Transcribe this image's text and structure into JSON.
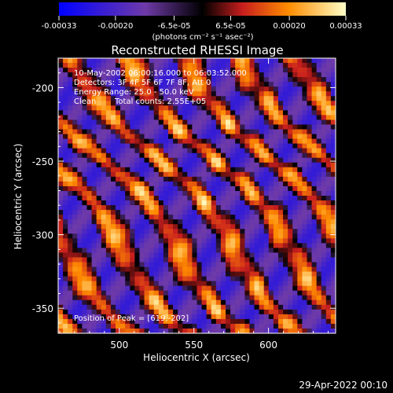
{
  "colorbar": {
    "tick_labels": [
      "-0.00033",
      "-0.00020",
      "-6.5e-05",
      "6.5e-05",
      "0.00020",
      "0.00033"
    ],
    "tick_values": [
      -0.00033,
      -0.0002,
      -6.5e-05,
      6.5e-05,
      0.0002,
      0.00033
    ],
    "range": [
      -0.00033,
      0.00033
    ],
    "units": "(photons cm⁻² s⁻¹ asec⁻²)",
    "colors": [
      "#0000ff",
      "#6e3aa8",
      "#000000",
      "#c81e1e",
      "#ff8c00",
      "#ffffc8"
    ]
  },
  "chart_data": {
    "type": "heatmap",
    "title": "Reconstructed RHESSI Image",
    "xlabel": "Heliocentric X (arcsec)",
    "ylabel": "Heliocentric Y (arcsec)",
    "xlim": [
      459,
      645
    ],
    "ylim": [
      -367,
      -180
    ],
    "xticks": [
      500,
      550,
      600
    ],
    "yticks": [
      -200,
      -250,
      -300,
      -350
    ],
    "grid": false,
    "annotations": {
      "time": "10-May-2002 06:00:16.000 to 06:03:52.000",
      "detectors": "Detectors: 3F 4F 5F 6F 7F 8F, Att 0",
      "energy": "Energy Range: 25.0 - 50.0 keV",
      "method": "Clean",
      "counts": "Total counts: 2.55E+05",
      "peak": "Position of Peak = [619,-202]"
    }
  },
  "footer": {
    "timestamp": "29-Apr-2022 00:10"
  }
}
